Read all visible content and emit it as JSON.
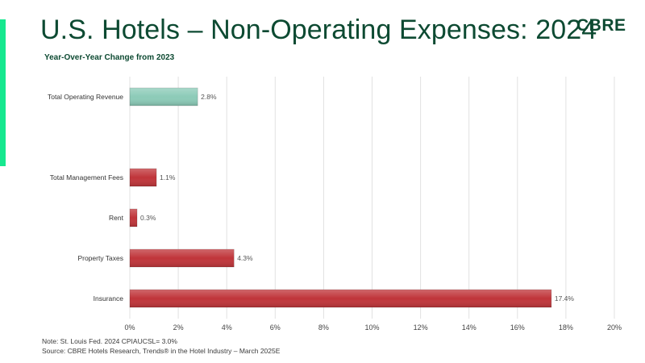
{
  "header": {
    "title": "U.S. Hotels – Non-Operating Expenses: 2024",
    "subtitle": "Year-Over-Year Change from 2023",
    "logo_text": "CBRE"
  },
  "footer": {
    "note": "Note:  St. Louis Fed. 2024 CPIAUCSL= 3.0%",
    "source": "Source: CBRE Hotels Research, Trends® in the Hotel Industry – March 2025E"
  },
  "colors": {
    "title": "#0d4a32",
    "accent": "#17e88f",
    "revenue_bar": "#8ccbb8",
    "expense_bar": "#c0353a",
    "grid": "#e1e1e1"
  },
  "chart_data": {
    "type": "bar",
    "orientation": "horizontal",
    "categories": [
      "Total Operating Revenue",
      "",
      "Total Management Fees",
      "Rent",
      "Property Taxes",
      "Insurance"
    ],
    "values": [
      2.8,
      null,
      1.1,
      0.3,
      4.3,
      17.4
    ],
    "data_labels": [
      "2.8%",
      "",
      "1.1%",
      "0.3%",
      "4.3%",
      "17.4%"
    ],
    "bar_colors": [
      "#8ccbb8",
      null,
      "#c0353a",
      "#c0353a",
      "#c0353a",
      "#c0353a"
    ],
    "title": "U.S. Hotels – Non-Operating Expenses: 2024",
    "subtitle": "Year-Over-Year Change from 2023",
    "xlabel": "",
    "ylabel": "",
    "xlim": [
      0,
      20
    ],
    "xticks": [
      0,
      2,
      4,
      6,
      8,
      10,
      12,
      14,
      16,
      18,
      20
    ],
    "xtick_labels": [
      "0%",
      "2%",
      "4%",
      "6%",
      "8%",
      "10%",
      "12%",
      "14%",
      "16%",
      "18%",
      "20%"
    ],
    "grid": true,
    "legend": "none"
  }
}
